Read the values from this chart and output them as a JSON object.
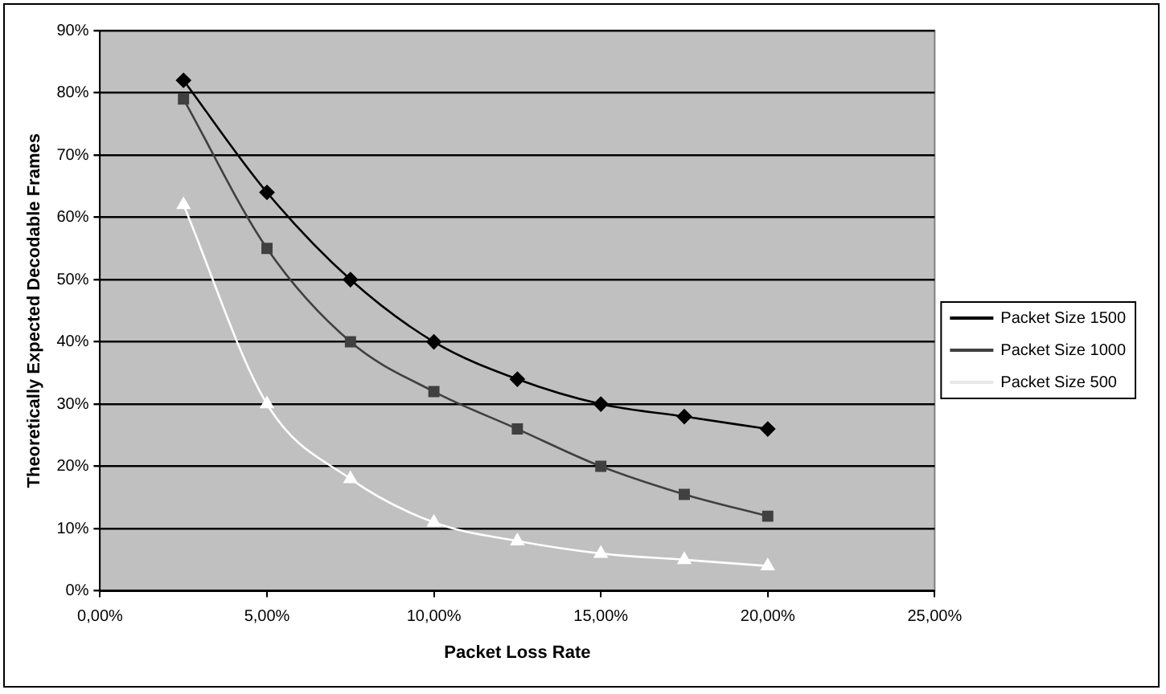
{
  "chart_data": {
    "type": "line",
    "xlabel": "Packet Loss Rate",
    "ylabel": "Theoretically Expected Decodable Frames",
    "x": [
      2.5,
      5,
      7.5,
      10,
      12.5,
      15,
      17.5,
      20
    ],
    "series": [
      {
        "name": "Packet Size 1500",
        "color": "#000000",
        "marker": "diamond",
        "values": [
          82,
          64,
          50,
          40,
          34,
          30,
          28,
          26
        ]
      },
      {
        "name": "Packet Size 1000",
        "color": "#404040",
        "marker": "square",
        "values": [
          79,
          55,
          40,
          32,
          26,
          20,
          15.5,
          12
        ]
      },
      {
        "name": "Packet Size 500",
        "color": "#ffffff",
        "marker": "triangle",
        "values": [
          62,
          30,
          18,
          11,
          8,
          6,
          5,
          4
        ]
      }
    ],
    "xlim": [
      0,
      25
    ],
    "xticks": [
      {
        "value": 0,
        "label": "0,00%"
      },
      {
        "value": 5,
        "label": "5,00%"
      },
      {
        "value": 10,
        "label": "10,00%"
      },
      {
        "value": 15,
        "label": "15,00%"
      },
      {
        "value": 20,
        "label": "20,00%"
      },
      {
        "value": 25,
        "label": "25,00%"
      }
    ],
    "ylim": [
      0,
      90
    ],
    "yticks": [
      {
        "value": 0,
        "label": "0%"
      },
      {
        "value": 10,
        "label": "10%"
      },
      {
        "value": 20,
        "label": "20%"
      },
      {
        "value": 30,
        "label": "30%"
      },
      {
        "value": 40,
        "label": "40%"
      },
      {
        "value": 50,
        "label": "50%"
      },
      {
        "value": 60,
        "label": "60%"
      },
      {
        "value": 70,
        "label": "70%"
      },
      {
        "value": 80,
        "label": "80%"
      },
      {
        "value": 90,
        "label": "90%"
      }
    ],
    "grid": "y",
    "legend": "right"
  }
}
